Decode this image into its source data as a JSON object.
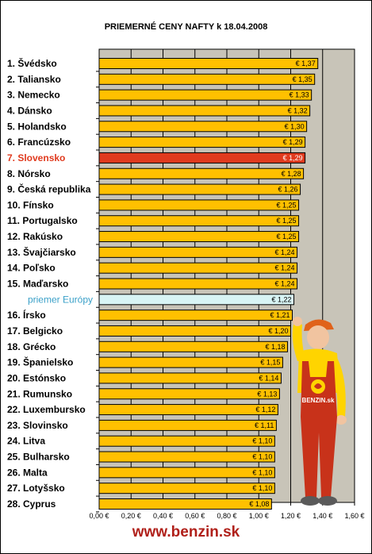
{
  "chart_data": {
    "type": "bar",
    "orientation": "horizontal",
    "title": "PRIEMERNÉ CENY NAFTY k 18.04.2008",
    "categories": [
      "1. Švédsko",
      "2. Taliansko",
      "3. Nemecko",
      "4. Dánsko",
      "5. Holandsko",
      "6. Francúzsko",
      "7. Slovensko",
      "8. Nórsko",
      "9. Česká republika",
      "10. Fínsko",
      "11. Portugalsko",
      "12. Rakúsko",
      "13. Švajčiarsko",
      "14. Poľsko",
      "15. Maďarsko",
      "priemer Európy",
      "16. Írsko",
      "17. Belgicko",
      "18. Grécko",
      "19. Španielsko",
      "20. Estónsko",
      "21. Rumunsko",
      "22. Luxembursko",
      "23. Slovinsko",
      "24. Litva",
      "25. Bulharsko",
      "26. Malta",
      "27. Lotyšsko",
      "28. Cyprus"
    ],
    "values": [
      1.37,
      1.35,
      1.33,
      1.32,
      1.3,
      1.29,
      1.29,
      1.28,
      1.26,
      1.25,
      1.25,
      1.25,
      1.24,
      1.24,
      1.24,
      1.22,
      1.21,
      1.2,
      1.18,
      1.15,
      1.14,
      1.13,
      1.12,
      1.11,
      1.1,
      1.1,
      1.1,
      1.1,
      1.08
    ],
    "value_labels": [
      "€ 1,37",
      "€ 1,35",
      "€ 1,33",
      "€ 1,32",
      "€ 1,30",
      "€ 1,29",
      "€ 1,29",
      "€ 1,28",
      "€ 1,26",
      "€ 1,25",
      "€ 1,25",
      "€ 1,25",
      "€ 1,24",
      "€ 1,24",
      "€ 1,24",
      "€ 1,22",
      "€ 1,21",
      "€ 1,20",
      "€ 1,18",
      "€ 1,15",
      "€ 1,14",
      "€ 1,13",
      "€ 1,12",
      "€ 1,11",
      "€ 1,10",
      "€ 1,10",
      "€ 1,10",
      "€ 1,10",
      "€ 1,08"
    ],
    "highlight_index": 6,
    "average_index": 15,
    "xlim": [
      0,
      1.6
    ],
    "xticks": [
      0,
      0.2,
      0.4,
      0.6,
      0.8,
      1.0,
      1.2,
      1.4,
      1.6
    ],
    "xtick_labels": [
      "0,00 €",
      "0,20 €",
      "0,40 €",
      "0,60 €",
      "0,80 €",
      "1,00 €",
      "1,20 €",
      "1,40 €",
      "1,60 €"
    ],
    "grid": true,
    "colors": {
      "bar": "#ffc000",
      "highlight": "#e03a1e",
      "average": "#d8f4f4",
      "plot_bg": "#c8c4b8"
    }
  },
  "footer": {
    "site": "www.benzin.sk"
  },
  "mascot": {
    "shirt_text": "BENZIN.sk"
  }
}
